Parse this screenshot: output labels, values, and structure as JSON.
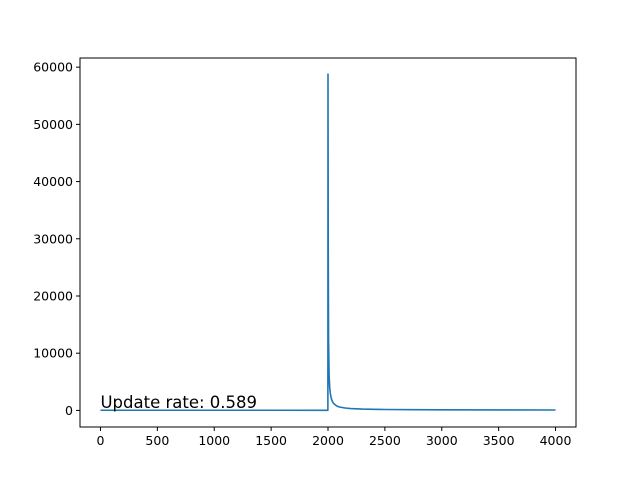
{
  "chart_data": {
    "type": "line",
    "title": "",
    "xlabel": "",
    "ylabel": "",
    "xlim": [
      -180,
      4180
    ],
    "ylim": [
      -2900,
      61600
    ],
    "xticks": [
      0,
      500,
      1000,
      1500,
      2000,
      2500,
      3000,
      3500,
      4000
    ],
    "yticks": [
      0,
      10000,
      20000,
      30000,
      40000,
      50000,
      60000
    ],
    "xtick_labels": [
      "0",
      "500",
      "1000",
      "1500",
      "2000",
      "2500",
      "3000",
      "3500",
      "4000"
    ],
    "ytick_labels": [
      "0",
      "10000",
      "20000",
      "30000",
      "40000",
      "50000",
      "60000"
    ],
    "grid": false,
    "series": [
      {
        "color": "#1f77b4",
        "x": [
          0,
          500,
          1000,
          1500,
          1999,
          2000,
          2002,
          2005,
          2010,
          2015,
          2020,
          2030,
          2040,
          2050,
          2075,
          2100,
          2150,
          2200,
          2300,
          2400,
          2500,
          2750,
          3000,
          3500,
          4000
        ],
        "y": [
          30,
          28,
          27,
          26,
          25,
          58800,
          29000,
          12000,
          6000,
          4000,
          3000,
          2000,
          1500,
          1200,
          800,
          600,
          420,
          320,
          230,
          190,
          160,
          120,
          100,
          80,
          70
        ]
      }
    ],
    "annotations": [
      {
        "text": "Update rate: 0.589",
        "x": 0,
        "y": 400
      }
    ]
  }
}
